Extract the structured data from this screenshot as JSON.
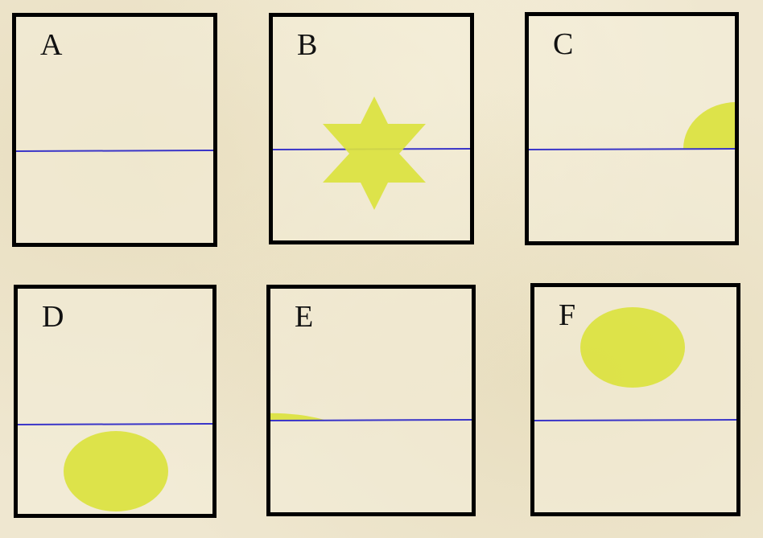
{
  "colors": {
    "shape_fill": "#dbe23e",
    "line": "#3a35c8",
    "border": "#000000"
  },
  "panels": [
    {
      "label": "A",
      "shape": "none"
    },
    {
      "label": "B",
      "shape": "six-pointed-star"
    },
    {
      "label": "C",
      "shape": "half-ellipse"
    },
    {
      "label": "D",
      "shape": "ellipse"
    },
    {
      "label": "E",
      "shape": "half-ellipse"
    },
    {
      "label": "F",
      "shape": "ellipse"
    }
  ]
}
